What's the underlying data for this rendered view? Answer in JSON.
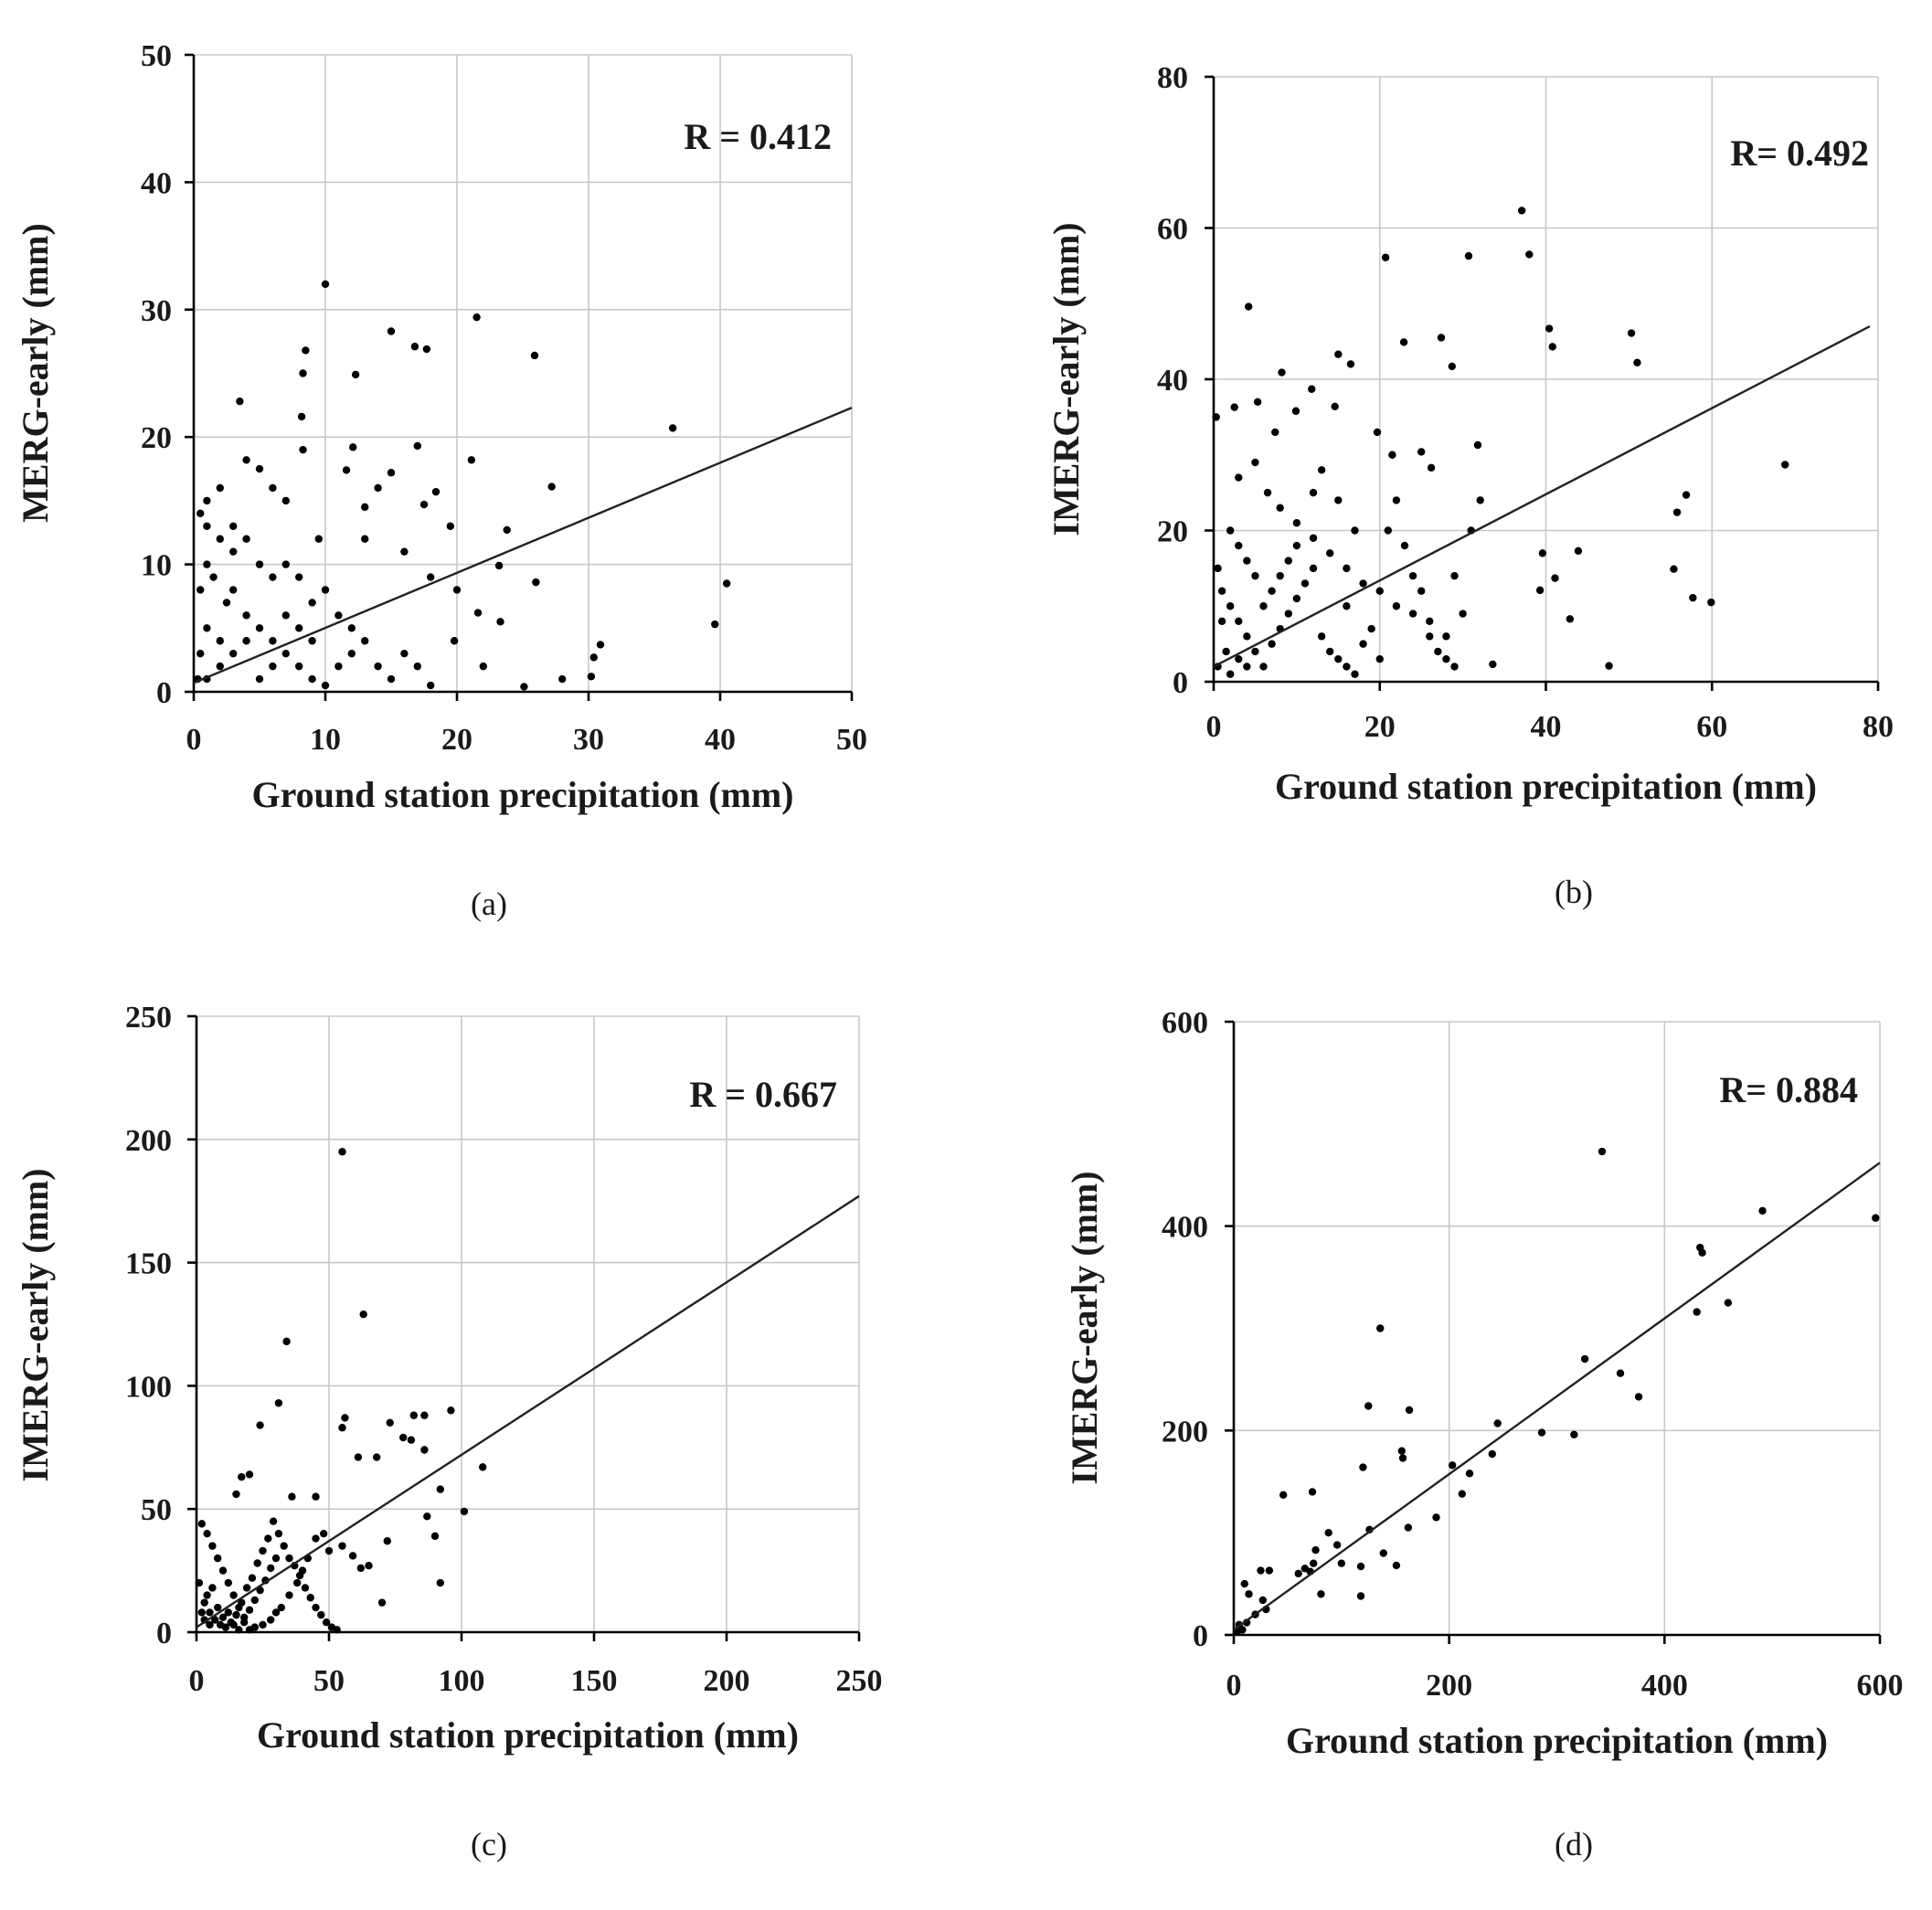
{
  "chart_data": [
    {
      "type": "scatter",
      "panel": "(a)",
      "caption": "(a)",
      "xlabel": "Ground station precipitation (mm)",
      "ylabel": "MERG-early (mm)",
      "xlim": [
        0,
        50
      ],
      "ylim": [
        0,
        50
      ],
      "xticks": [
        0,
        10,
        20,
        30,
        40,
        50
      ],
      "yticks": [
        0,
        10,
        20,
        30,
        40,
        50
      ],
      "grid": true,
      "annotation": "R = 0.412",
      "fit_line": {
        "x": [
          0,
          50
        ],
        "y": [
          0.7,
          22.3
        ]
      },
      "points": [
        [
          10,
          32
        ],
        [
          8.5,
          26.8
        ],
        [
          8.3,
          25
        ],
        [
          8.2,
          21.6
        ],
        [
          8.3,
          19
        ],
        [
          3.5,
          22.8
        ],
        [
          15,
          28.3
        ],
        [
          16.8,
          27.1
        ],
        [
          17.7,
          26.9
        ],
        [
          21.5,
          29.4
        ],
        [
          25.9,
          26.4
        ],
        [
          12.3,
          24.9
        ],
        [
          36.4,
          20.7
        ],
        [
          40.5,
          8.5
        ],
        [
          39.6,
          5.3
        ],
        [
          21.1,
          18.2
        ],
        [
          11.6,
          17.4
        ],
        [
          12.1,
          19.2
        ],
        [
          15,
          17.2
        ],
        [
          17,
          19.3
        ],
        [
          17.5,
          14.7
        ],
        [
          18.4,
          15.7
        ],
        [
          19.5,
          13
        ],
        [
          27.2,
          16.1
        ],
        [
          23.8,
          12.7
        ],
        [
          26,
          8.6
        ],
        [
          23.2,
          9.9
        ],
        [
          30.9,
          3.7
        ],
        [
          30.2,
          1.2
        ],
        [
          30.4,
          2.7
        ],
        [
          25.1,
          0.4
        ],
        [
          23.3,
          5.5
        ],
        [
          21.6,
          6.2
        ],
        [
          19.8,
          4
        ],
        [
          5,
          17.5
        ],
        [
          6,
          16
        ],
        [
          4,
          18.2
        ],
        [
          7,
          15
        ],
        [
          9.5,
          12
        ],
        [
          13,
          12
        ],
        [
          16,
          11
        ],
        [
          18,
          9
        ],
        [
          20,
          8
        ],
        [
          14,
          16
        ],
        [
          13,
          14.5
        ],
        [
          22,
          2
        ],
        [
          28,
          1
        ],
        [
          0.5,
          14
        ],
        [
          1,
          13
        ],
        [
          2,
          12
        ],
        [
          3,
          11
        ],
        [
          1,
          10
        ],
        [
          0.5,
          8
        ],
        [
          1.5,
          9
        ],
        [
          2.5,
          7
        ],
        [
          3,
          8
        ],
        [
          4,
          6
        ],
        [
          5,
          5
        ],
        [
          6,
          4
        ],
        [
          7,
          3
        ],
        [
          8,
          2
        ],
        [
          9,
          1
        ],
        [
          10,
          0.5
        ],
        [
          11,
          2
        ],
        [
          12,
          3
        ],
        [
          2,
          2
        ],
        [
          1,
          1
        ],
        [
          3,
          3
        ],
        [
          4,
          4
        ],
        [
          5,
          1
        ],
        [
          6,
          2
        ],
        [
          1,
          5
        ],
        [
          2,
          4
        ],
        [
          0.5,
          3
        ],
        [
          0.3,
          1
        ],
        [
          7,
          6
        ],
        [
          8,
          5
        ],
        [
          9,
          4
        ],
        [
          6,
          9
        ],
        [
          5,
          10
        ],
        [
          4,
          12
        ],
        [
          3,
          13
        ],
        [
          7,
          10
        ],
        [
          8,
          9
        ],
        [
          11,
          6
        ],
        [
          12,
          5
        ],
        [
          13,
          4
        ],
        [
          14,
          2
        ],
        [
          15,
          1
        ],
        [
          16,
          3
        ],
        [
          17,
          2
        ],
        [
          18,
          0.5
        ],
        [
          10,
          8
        ],
        [
          9,
          7
        ],
        [
          2,
          16
        ],
        [
          1,
          15
        ]
      ]
    },
    {
      "type": "scatter",
      "panel": "(b)",
      "caption": "(b)",
      "xlabel": "Ground station precipitation (mm)",
      "ylabel": "IMERG-early (mm)",
      "xlim": [
        0,
        80
      ],
      "ylim": [
        0,
        80
      ],
      "xticks": [
        0,
        20,
        40,
        60,
        80
      ],
      "yticks": [
        0,
        20,
        40,
        60,
        80
      ],
      "grid": true,
      "annotation": "R= 0.492",
      "fit_line": {
        "x": [
          0,
          79
        ],
        "y": [
          2,
          47
        ]
      },
      "points": [
        [
          37.1,
          62.3
        ],
        [
          38,
          56.5
        ],
        [
          30.7,
          56.3
        ],
        [
          20.7,
          56.1
        ],
        [
          4.2,
          49.6
        ],
        [
          27.4,
          45.5
        ],
        [
          22.9,
          44.9
        ],
        [
          40.4,
          46.7
        ],
        [
          40.8,
          44.3
        ],
        [
          50.3,
          46.1
        ],
        [
          51,
          42.2
        ],
        [
          15,
          43.3
        ],
        [
          16.5,
          42
        ],
        [
          28.7,
          41.7
        ],
        [
          8.2,
          40.9
        ],
        [
          68.8,
          28.7
        ],
        [
          56.9,
          24.7
        ],
        [
          55.8,
          22.4
        ],
        [
          55.4,
          14.9
        ],
        [
          57.7,
          11.1
        ],
        [
          59.9,
          10.5
        ],
        [
          39.6,
          17
        ],
        [
          41.1,
          13.7
        ],
        [
          39.3,
          12.1
        ],
        [
          43.9,
          17.3
        ],
        [
          42.9,
          8.3
        ],
        [
          47.6,
          2.1
        ],
        [
          33.6,
          2.3
        ],
        [
          31.8,
          31.3
        ],
        [
          32.1,
          24
        ],
        [
          19.7,
          33
        ],
        [
          21.5,
          30
        ],
        [
          25,
          30.4
        ],
        [
          26.2,
          28.3
        ],
        [
          0.3,
          35
        ],
        [
          2.5,
          36.3
        ],
        [
          5.3,
          37
        ],
        [
          7.4,
          33
        ],
        [
          9.9,
          35.8
        ],
        [
          11.8,
          38.7
        ],
        [
          14.6,
          36.4
        ],
        [
          5,
          29
        ],
        [
          3,
          27
        ],
        [
          6.5,
          25
        ],
        [
          8,
          23
        ],
        [
          10,
          21
        ],
        [
          12,
          19
        ],
        [
          14,
          17
        ],
        [
          16,
          15
        ],
        [
          18,
          13
        ],
        [
          20,
          12
        ],
        [
          22,
          10
        ],
        [
          24,
          9
        ],
        [
          26,
          8
        ],
        [
          28,
          6
        ],
        [
          30,
          9
        ],
        [
          2,
          20
        ],
        [
          3,
          18
        ],
        [
          4,
          16
        ],
        [
          5,
          14
        ],
        [
          1,
          12
        ],
        [
          2,
          10
        ],
        [
          3,
          8
        ],
        [
          4,
          6
        ],
        [
          5,
          4
        ],
        [
          6,
          2
        ],
        [
          7,
          5
        ],
        [
          8,
          7
        ],
        [
          9,
          9
        ],
        [
          10,
          11
        ],
        [
          11,
          13
        ],
        [
          12,
          15
        ],
        [
          13,
          6
        ],
        [
          14,
          4
        ],
        [
          15,
          3
        ],
        [
          16,
          2
        ],
        [
          17,
          1
        ],
        [
          18,
          5
        ],
        [
          19,
          7
        ],
        [
          20,
          3
        ],
        [
          21,
          20
        ],
        [
          22,
          24
        ],
        [
          23,
          18
        ],
        [
          24,
          14
        ],
        [
          25,
          12
        ],
        [
          26,
          6
        ],
        [
          27,
          4
        ],
        [
          28,
          3
        ],
        [
          29,
          2
        ],
        [
          0.5,
          15
        ],
        [
          1,
          8
        ],
        [
          1.5,
          4
        ],
        [
          0.5,
          2
        ],
        [
          2,
          1
        ],
        [
          3,
          3
        ],
        [
          4,
          2
        ],
        [
          6,
          10
        ],
        [
          7,
          12
        ],
        [
          8,
          14
        ],
        [
          9,
          16
        ],
        [
          10,
          18
        ],
        [
          12,
          25
        ],
        [
          13,
          28
        ],
        [
          16,
          10
        ],
        [
          17,
          20
        ],
        [
          15,
          24
        ],
        [
          29,
          14
        ],
        [
          31,
          20
        ]
      ]
    },
    {
      "type": "scatter",
      "panel": "(c)",
      "caption": "(c)",
      "xlabel": "Ground station precipitation (mm)",
      "ylabel": "IMERG-early (mm)",
      "xlim": [
        0,
        250
      ],
      "ylim": [
        0,
        250
      ],
      "xticks": [
        0,
        50,
        100,
        150,
        200,
        250
      ],
      "yticks": [
        0,
        50,
        100,
        150,
        200,
        250
      ],
      "grid": true,
      "annotation": "R = 0.667",
      "fit_line": {
        "x": [
          0,
          250
        ],
        "y": [
          2,
          177
        ]
      },
      "points": [
        [
          55,
          195
        ],
        [
          63,
          129
        ],
        [
          34,
          118
        ],
        [
          31,
          93
        ],
        [
          24,
          84
        ],
        [
          56,
          87
        ],
        [
          55,
          83
        ],
        [
          73,
          85
        ],
        [
          78,
          79
        ],
        [
          82,
          88
        ],
        [
          86,
          88
        ],
        [
          96,
          90
        ],
        [
          81,
          78
        ],
        [
          86,
          74
        ],
        [
          108,
          67
        ],
        [
          61,
          71
        ],
        [
          68,
          71
        ],
        [
          17,
          63
        ],
        [
          20,
          64
        ],
        [
          15,
          56
        ],
        [
          36,
          55
        ],
        [
          45,
          55
        ],
        [
          92,
          58
        ],
        [
          101,
          49
        ],
        [
          87,
          47
        ],
        [
          90,
          39
        ],
        [
          92,
          20
        ],
        [
          72,
          37
        ],
        [
          65,
          27
        ],
        [
          70,
          12
        ],
        [
          62,
          26
        ],
        [
          59,
          31
        ],
        [
          55,
          35
        ],
        [
          50,
          33
        ],
        [
          48,
          40
        ],
        [
          45,
          38
        ],
        [
          42,
          30
        ],
        [
          40,
          25
        ],
        [
          38,
          20
        ],
        [
          35,
          15
        ],
        [
          32,
          10
        ],
        [
          30,
          8
        ],
        [
          28,
          5
        ],
        [
          25,
          3
        ],
        [
          22,
          2
        ],
        [
          20,
          1
        ],
        [
          18,
          6
        ],
        [
          16,
          10
        ],
        [
          14,
          15
        ],
        [
          12,
          20
        ],
        [
          10,
          25
        ],
        [
          8,
          30
        ],
        [
          6,
          35
        ],
        [
          4,
          40
        ],
        [
          2,
          44
        ],
        [
          1,
          20
        ],
        [
          3,
          12
        ],
        [
          5,
          8
        ],
        [
          7,
          5
        ],
        [
          9,
          3
        ],
        [
          11,
          2
        ],
        [
          13,
          4
        ],
        [
          15,
          7
        ],
        [
          17,
          12
        ],
        [
          19,
          18
        ],
        [
          21,
          22
        ],
        [
          23,
          28
        ],
        [
          25,
          33
        ],
        [
          27,
          38
        ],
        [
          29,
          45
        ],
        [
          31,
          40
        ],
        [
          33,
          35
        ],
        [
          35,
          30
        ],
        [
          37,
          27
        ],
        [
          39,
          23
        ],
        [
          41,
          18
        ],
        [
          43,
          14
        ],
        [
          45,
          10
        ],
        [
          47,
          7
        ],
        [
          49,
          4
        ],
        [
          51,
          2
        ],
        [
          53,
          1
        ],
        [
          3,
          5
        ],
        [
          5,
          3
        ],
        [
          2,
          8
        ],
        [
          4,
          15
        ],
        [
          6,
          18
        ],
        [
          8,
          10
        ],
        [
          10,
          6
        ],
        [
          12,
          8
        ],
        [
          14,
          3
        ],
        [
          16,
          1
        ],
        [
          18,
          4
        ],
        [
          20,
          9
        ],
        [
          22,
          13
        ],
        [
          24,
          17
        ],
        [
          26,
          21
        ],
        [
          28,
          26
        ],
        [
          30,
          30
        ]
      ]
    },
    {
      "type": "scatter",
      "panel": "(d)",
      "caption": "(d)",
      "xlabel": "Ground station precipitation (mm)",
      "ylabel": "IMERG-early (mm)",
      "xlim": [
        0,
        600
      ],
      "ylim": [
        0,
        600
      ],
      "xticks": [
        0,
        200,
        400,
        600
      ],
      "yticks": [
        0,
        200,
        400,
        600
      ],
      "grid": true,
      "annotation": "R= 0.884",
      "fit_line": {
        "x": [
          0,
          600
        ],
        "y": [
          5,
          462
        ]
      },
      "points": [
        [
          342,
          473
        ],
        [
          136,
          300
        ],
        [
          491,
          415
        ],
        [
          596,
          408
        ],
        [
          433,
          379
        ],
        [
          435,
          374
        ],
        [
          459,
          325
        ],
        [
          430,
          316
        ],
        [
          326,
          270
        ],
        [
          359,
          256
        ],
        [
          376,
          233
        ],
        [
          125,
          224
        ],
        [
          163,
          220
        ],
        [
          245,
          207
        ],
        [
          240,
          177
        ],
        [
          286,
          198
        ],
        [
          316,
          196
        ],
        [
          156,
          180
        ],
        [
          157,
          173
        ],
        [
          120,
          164
        ],
        [
          203,
          166
        ],
        [
          219,
          158
        ],
        [
          212,
          138
        ],
        [
          46,
          137
        ],
        [
          73,
          140
        ],
        [
          188,
          115
        ],
        [
          162,
          105
        ],
        [
          126,
          103
        ],
        [
          88,
          100
        ],
        [
          76,
          83
        ],
        [
          74,
          70
        ],
        [
          66,
          65
        ],
        [
          71,
          62
        ],
        [
          96,
          88
        ],
        [
          139,
          80
        ],
        [
          151,
          68
        ],
        [
          118,
          67
        ],
        [
          118,
          38
        ],
        [
          81,
          40
        ],
        [
          25,
          63
        ],
        [
          33,
          63
        ],
        [
          10,
          50
        ],
        [
          14,
          40
        ],
        [
          27,
          34
        ],
        [
          20,
          20
        ],
        [
          30,
          25
        ],
        [
          5,
          10
        ],
        [
          8,
          5
        ],
        [
          3,
          3
        ],
        [
          12,
          12
        ],
        [
          60,
          60
        ],
        [
          100,
          70
        ]
      ]
    }
  ]
}
